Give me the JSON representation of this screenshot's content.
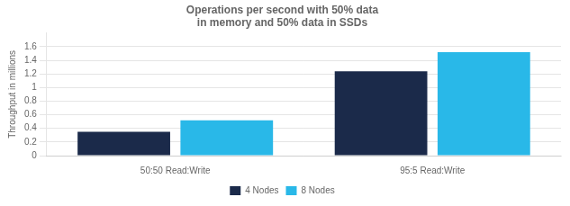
{
  "chart_data": {
    "type": "bar",
    "title": "Operations per second with 50% data\nin memory and 50% data in SSDs",
    "ylabel": "Throughput in millions",
    "categories": [
      "50:50 Read:Write",
      "95:5 Read:Write"
    ],
    "series": [
      {
        "name": "4 Nodes",
        "color": "#1b2a4a",
        "values": [
          0.35,
          1.24
        ]
      },
      {
        "name": "8 Nodes",
        "color": "#29b8e8",
        "values": [
          0.52,
          1.52
        ]
      }
    ],
    "ylim": [
      0,
      1.8
    ],
    "yticks": [
      0,
      0.2,
      0.4,
      0.6,
      0.8,
      1,
      1.2,
      1.4,
      1.6
    ],
    "grid": true,
    "legend": "bottom"
  }
}
